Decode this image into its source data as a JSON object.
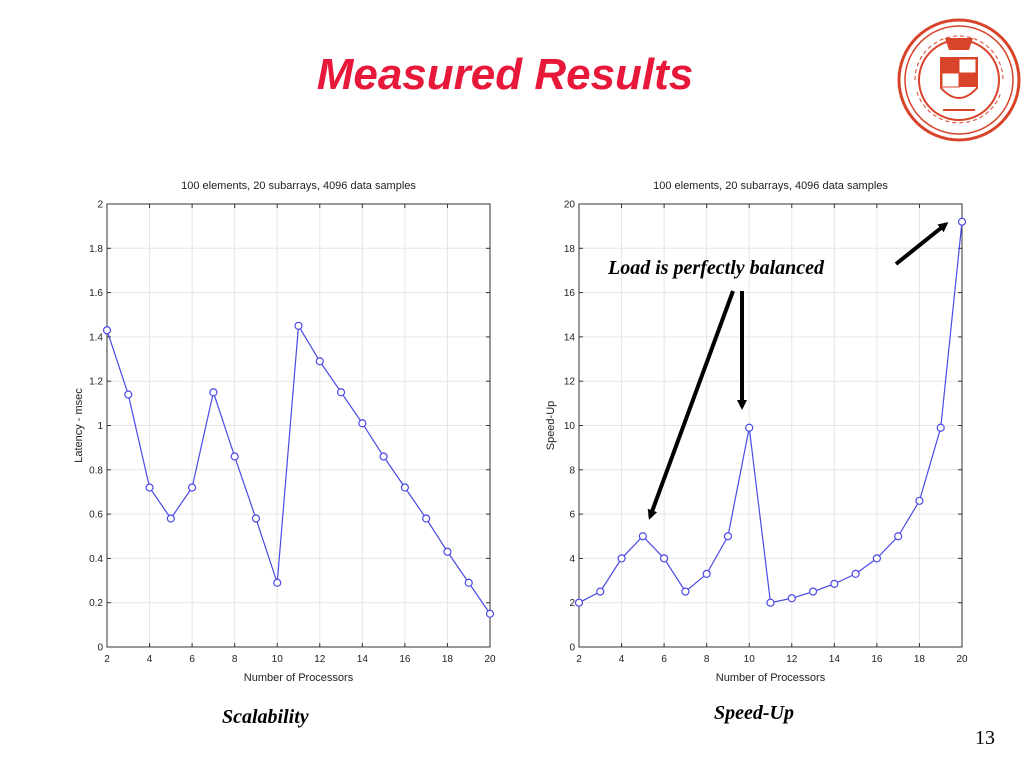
{
  "slide": {
    "title": "Measured Results",
    "page_number": "13",
    "annotation": "Load is perfectly balanced",
    "caption_left": "Scalability",
    "caption_right": "Speed-Up"
  },
  "colors": {
    "title": "#e8183a",
    "series": "#4a4ae6",
    "seal": "#d8432a"
  },
  "chart_data": [
    {
      "type": "line",
      "title": "100 elements, 20 subarrays, 4096 data samples",
      "xlabel": "Number of Processors",
      "ylabel": "Latency - msec",
      "xlim": [
        2,
        20
      ],
      "ylim": [
        0,
        2
      ],
      "xticks": [
        2,
        4,
        6,
        8,
        10,
        12,
        14,
        16,
        18,
        20
      ],
      "yticks": [
        0,
        0.2,
        0.4,
        0.6,
        0.8,
        1,
        1.2,
        1.4,
        1.6,
        1.8,
        2
      ],
      "grid": true,
      "series": [
        {
          "x": [
            2,
            3,
            4,
            5,
            6,
            7,
            8,
            9,
            10,
            11,
            12,
            13,
            14,
            15,
            16,
            17,
            18,
            19,
            20
          ],
          "values": [
            1.43,
            1.14,
            0.72,
            0.58,
            0.72,
            1.15,
            0.86,
            0.58,
            0.29,
            1.45,
            1.29,
            1.15,
            1.01,
            0.86,
            0.72,
            0.58,
            0.43,
            0.29,
            0.15
          ]
        }
      ]
    },
    {
      "type": "line",
      "title": "100 elements, 20 subarrays, 4096 data samples",
      "xlabel": "Number of Processors",
      "ylabel": "Speed-Up",
      "xlim": [
        2,
        20
      ],
      "ylim": [
        0,
        20
      ],
      "xticks": [
        2,
        4,
        6,
        8,
        10,
        12,
        14,
        16,
        18,
        20
      ],
      "yticks": [
        0,
        2,
        4,
        6,
        8,
        10,
        12,
        14,
        16,
        18,
        20
      ],
      "grid": true,
      "series": [
        {
          "x": [
            2,
            3,
            4,
            5,
            6,
            7,
            8,
            9,
            10,
            11,
            12,
            13,
            14,
            15,
            16,
            17,
            18,
            19,
            20
          ],
          "values": [
            2.0,
            2.5,
            4.0,
            5.0,
            4.0,
            2.5,
            3.3,
            5.0,
            9.9,
            2.0,
            2.2,
            2.5,
            2.85,
            3.3,
            4.0,
            5.0,
            6.6,
            9.9,
            19.2
          ]
        }
      ]
    }
  ]
}
